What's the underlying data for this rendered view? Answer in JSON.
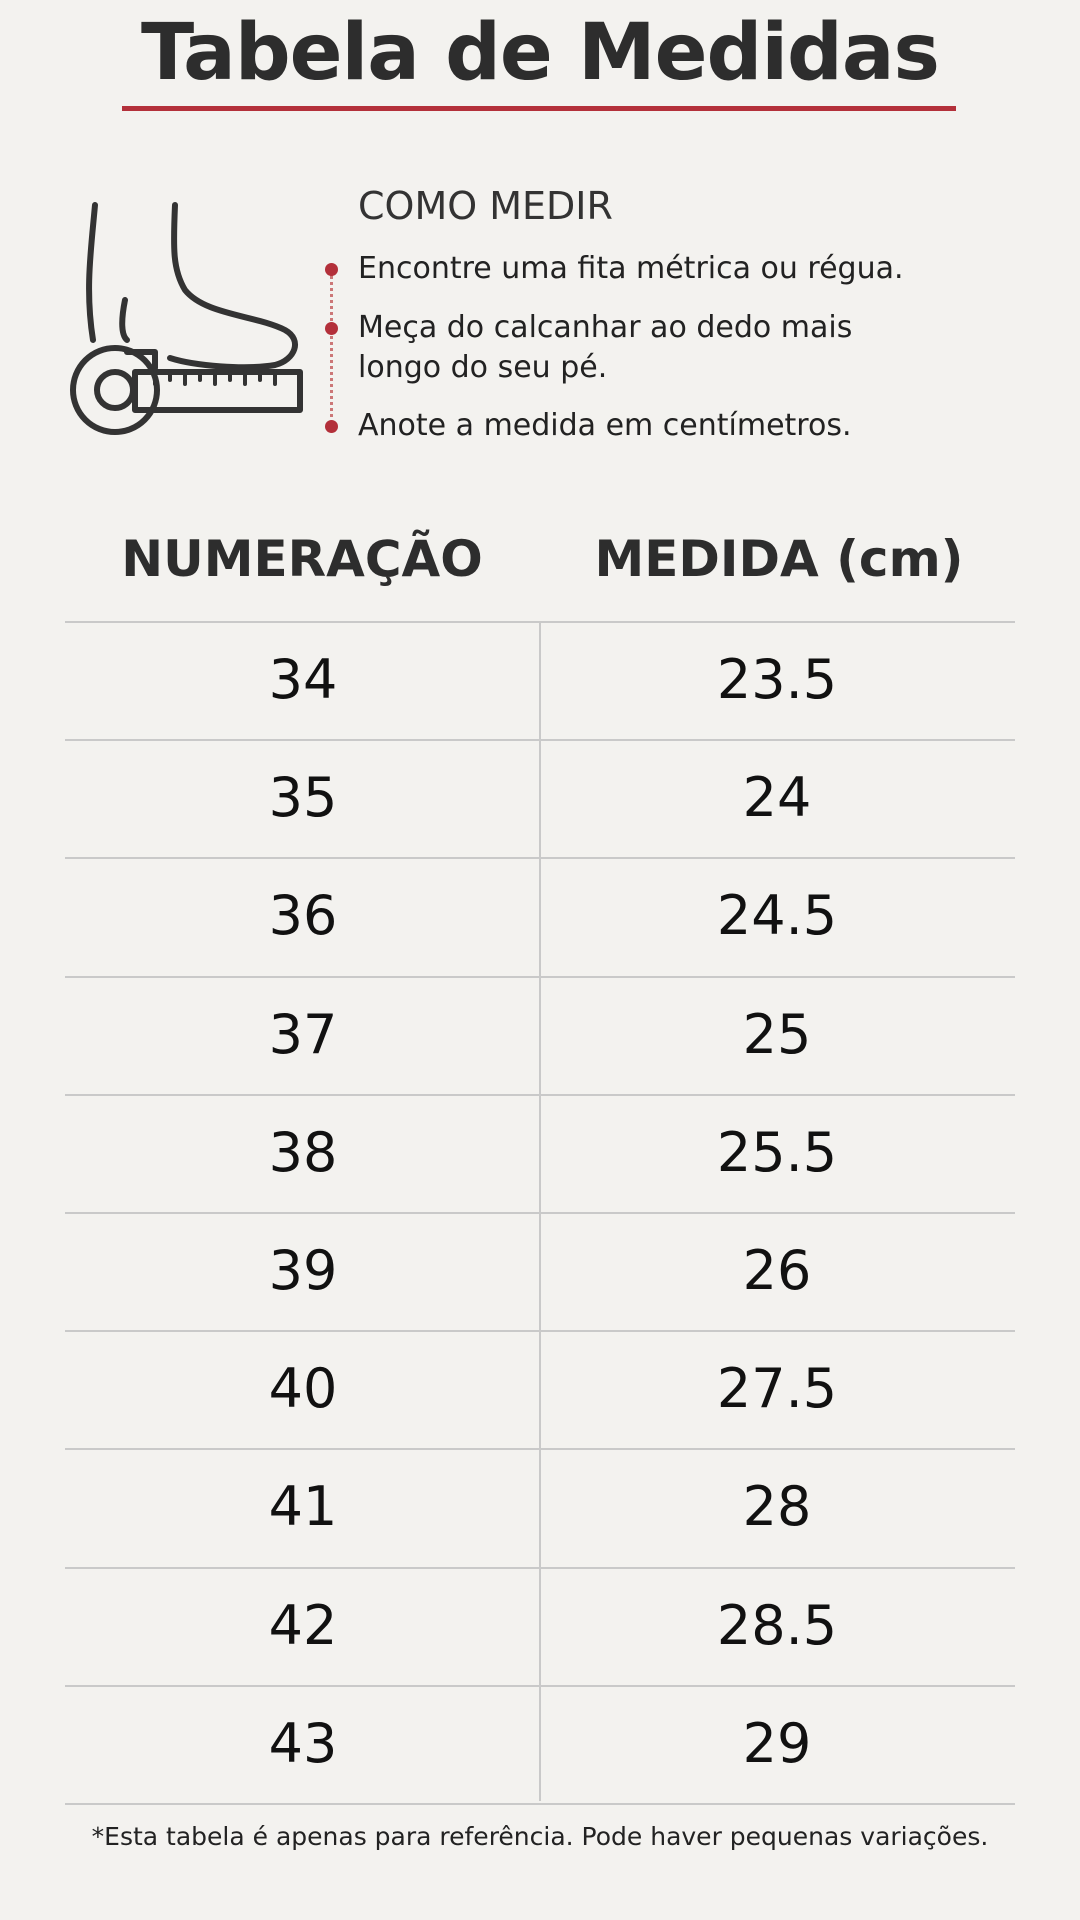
{
  "header": {
    "title": "Tabela de Medidas"
  },
  "instructions": {
    "title": "COMO MEDIR",
    "steps": [
      "Encontre uma fita métrica ou régua.",
      "Meça do calcanhar ao dedo mais longo do seu pé.",
      "Anote a medida em centímetros."
    ]
  },
  "table": {
    "columns": [
      "NUMERAÇÃO",
      "MEDIDA (cm)"
    ],
    "rows": [
      [
        34,
        23.5
      ],
      [
        35,
        24
      ],
      [
        36,
        24.5
      ],
      [
        37,
        25
      ],
      [
        38,
        25.5
      ],
      [
        39,
        26
      ],
      [
        40,
        27.5
      ],
      [
        41,
        28
      ],
      [
        42,
        28.5
      ],
      [
        43,
        29
      ]
    ]
  },
  "footnote": "*Esta tabela é apenas para referência. Pode haver pequenas variações."
}
